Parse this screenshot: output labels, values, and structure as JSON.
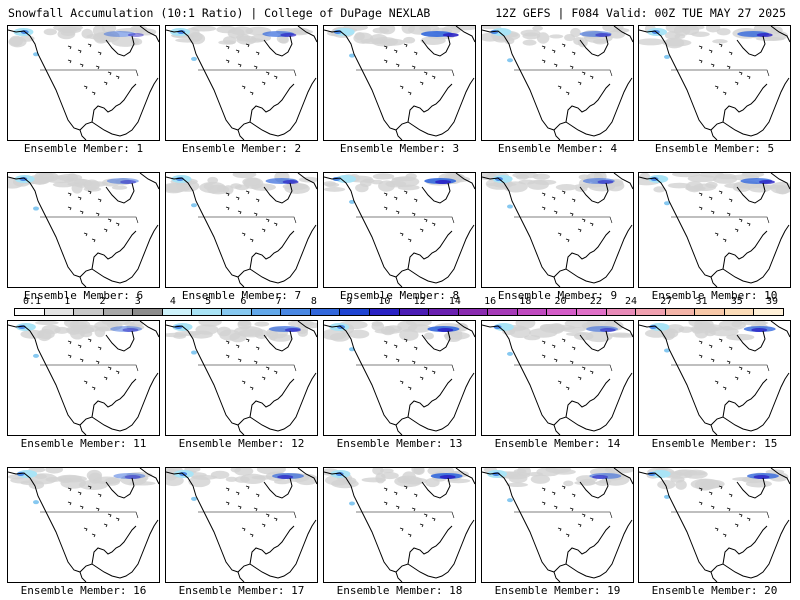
{
  "header": {
    "left": "Snowfall Accumulation (10:1 Ratio) | College of DuPage NEXLAB",
    "right": "12Z GEFS | F084 Valid: 00Z TUE MAY 27 2025"
  },
  "panels": [
    {
      "label": "Ensemble Member: 1"
    },
    {
      "label": "Ensemble Member: 2"
    },
    {
      "label": "Ensemble Member: 3"
    },
    {
      "label": "Ensemble Member: 4"
    },
    {
      "label": "Ensemble Member: 5"
    },
    {
      "label": "Ensemble Member: 6"
    },
    {
      "label": "Ensemble Member: 7"
    },
    {
      "label": "Ensemble Member: 8"
    },
    {
      "label": "Ensemble Member: 9"
    },
    {
      "label": "Ensemble Member: 10"
    },
    {
      "label": "Ensemble Member: 11"
    },
    {
      "label": "Ensemble Member: 12"
    },
    {
      "label": "Ensemble Member: 13"
    },
    {
      "label": "Ensemble Member: 14"
    },
    {
      "label": "Ensemble Member: 15"
    },
    {
      "label": "Ensemble Member: 16"
    },
    {
      "label": "Ensemble Member: 17"
    },
    {
      "label": "Ensemble Member: 18"
    },
    {
      "label": "Ensemble Member: 19"
    },
    {
      "label": "Ensemble Member: 20"
    }
  ],
  "colorbar": {
    "ticks": [
      "0.1",
      "1",
      "2",
      "3",
      "4",
      "5",
      "6",
      "7",
      "8",
      "9",
      "10",
      "12",
      "14",
      "16",
      "18",
      "20",
      "22",
      "24",
      "27",
      "31",
      "35",
      "39"
    ],
    "colors": [
      "#ffffff",
      "#e4e4e4",
      "#c8c8c8",
      "#a8a8a8",
      "#8c8c8c",
      "#cdf2fb",
      "#a9e4f6",
      "#86c8f0",
      "#62a8ea",
      "#4a88e4",
      "#3368dc",
      "#1f44d2",
      "#2a22c4",
      "#4b1cb4",
      "#6a20b0",
      "#8a2ab0",
      "#a63ab8",
      "#c04ac0",
      "#d45cc8",
      "#e070c8",
      "#e88ab8",
      "#f0a0b0",
      "#f4b4a8",
      "#f8c8a8",
      "#fcdcb8",
      "#fff0d8"
    ]
  }
}
